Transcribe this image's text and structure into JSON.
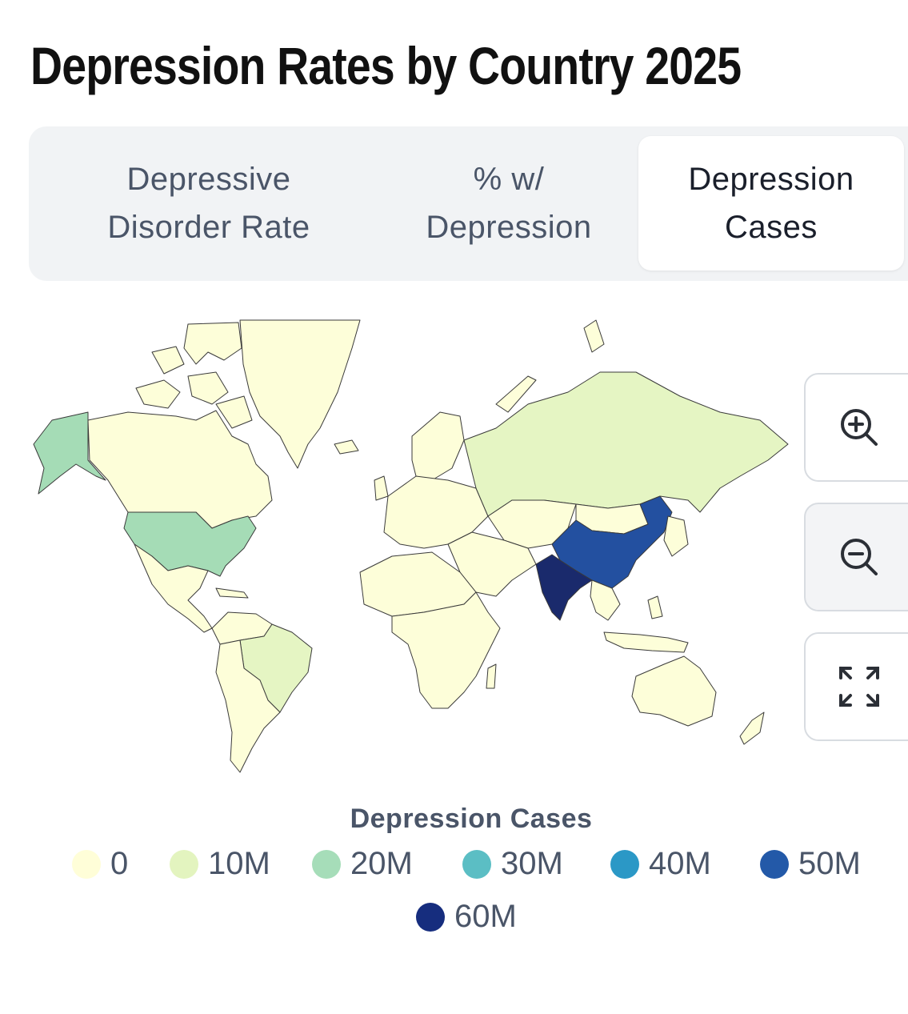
{
  "page": {
    "title": "Depression Rates by Country 2025"
  },
  "tabs": [
    {
      "line1": "Depressive",
      "line2": "Disorder Rate",
      "active": false
    },
    {
      "line1": "% w/",
      "line2": "Depression",
      "active": false
    },
    {
      "line1": "Depression",
      "line2": "Cases",
      "active": true
    }
  ],
  "map": {
    "metric": "Depression Cases",
    "highlighted_countries": [
      {
        "name": "India",
        "bucket": "60M",
        "color": "#1a2a6c"
      },
      {
        "name": "China",
        "bucket": "50M",
        "color": "#2350a0"
      },
      {
        "name": "United States",
        "bucket": "20M",
        "color": "#a5dcb6"
      },
      {
        "name": "Alaska (US)",
        "bucket": "20M",
        "color": "#a5dcb6"
      },
      {
        "name": "Russia",
        "bucket": "10M",
        "color": "#e5f5c3"
      },
      {
        "name": "Brazil",
        "bucket": "10M",
        "color": "#e5f5c3"
      }
    ],
    "default_color": "#fdfed9",
    "border_color": "#3a3a3a"
  },
  "controls": {
    "zoom_in_icon": "zoom-in-icon",
    "zoom_out_icon": "zoom-out-icon",
    "fullscreen_icon": "expand-icon"
  },
  "legend": {
    "title": "Depression Cases",
    "items": [
      {
        "label": "0",
        "color": "#fffed8"
      },
      {
        "label": "10M",
        "color": "#e3f4bf"
      },
      {
        "label": "20M",
        "color": "#a6ddb9"
      },
      {
        "label": "30M",
        "color": "#5bbec4"
      },
      {
        "label": "40M",
        "color": "#2b98c6"
      },
      {
        "label": "50M",
        "color": "#2359a8"
      },
      {
        "label": "60M",
        "color": "#162d7e"
      }
    ]
  }
}
